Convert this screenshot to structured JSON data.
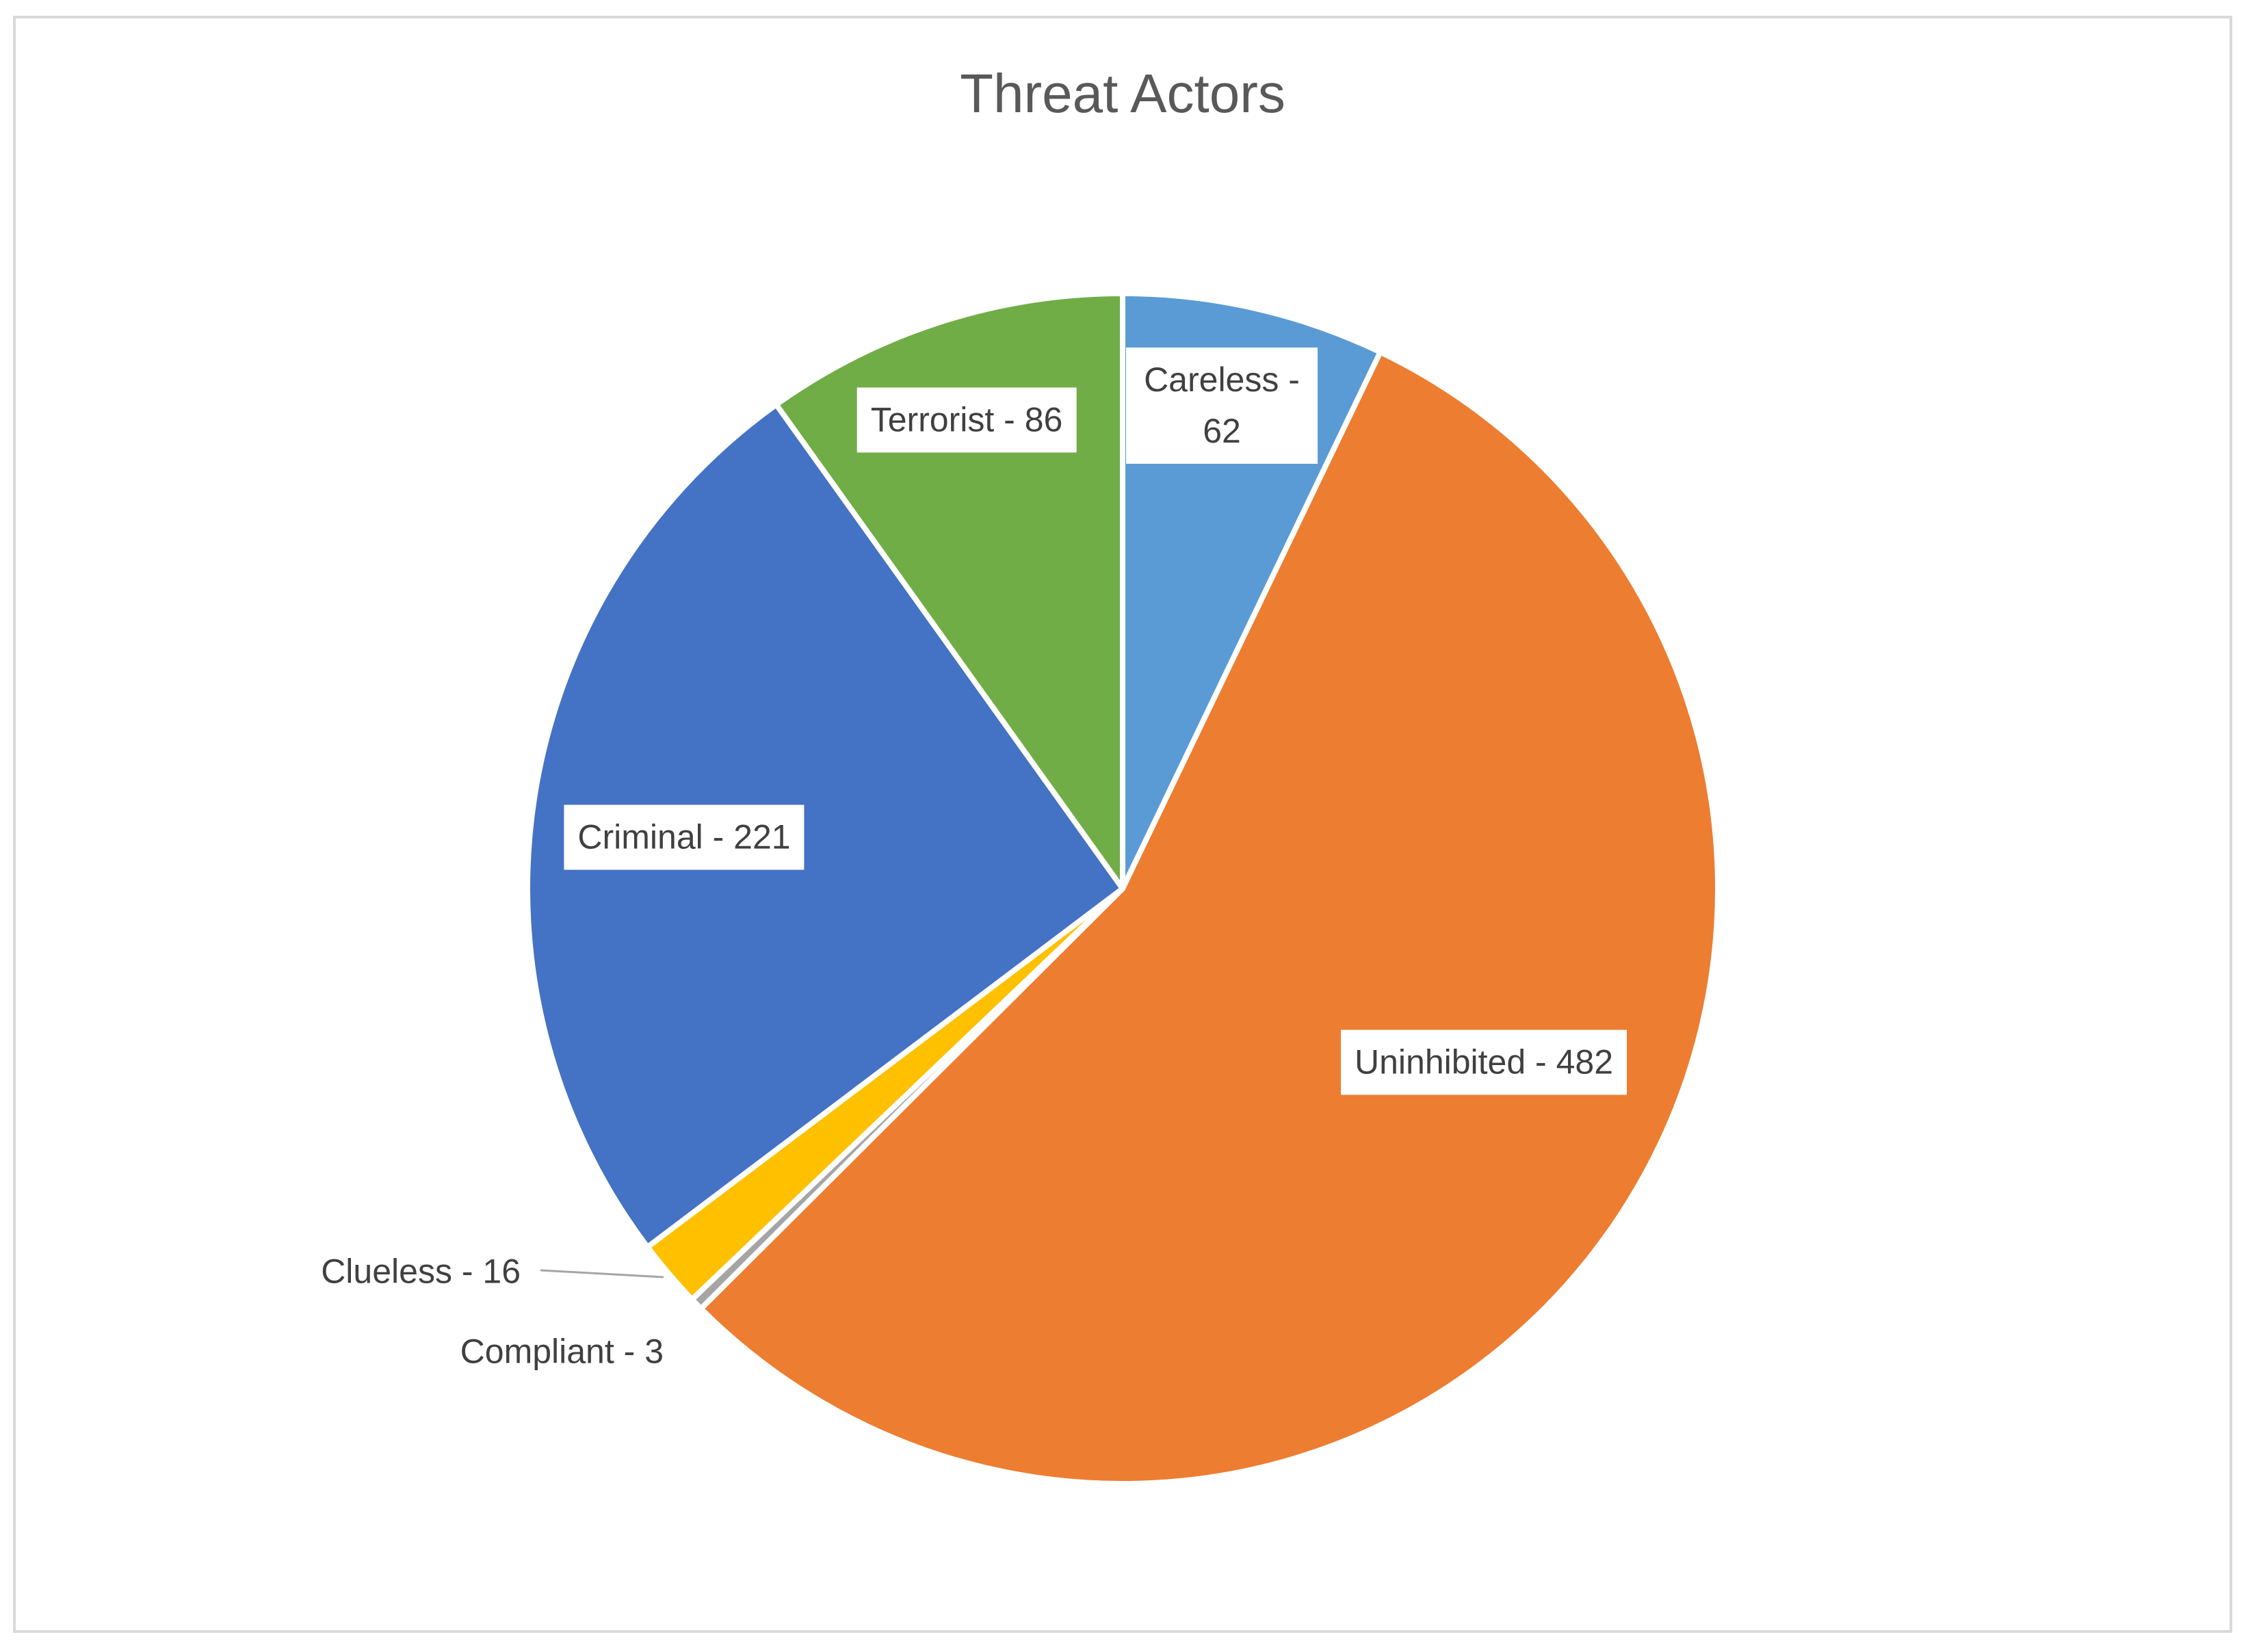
{
  "chart_data": {
    "type": "pie",
    "title": "Threat Actors",
    "categories": [
      "Careless",
      "Uninhibited",
      "Compliant",
      "Clueless",
      "Criminal",
      "Terrorist"
    ],
    "values": [
      62,
      482,
      3,
      16,
      221,
      86
    ],
    "value_labels": [
      "Careless - 62",
      "Uninhibited - 482",
      "Compliant - 3",
      "Clueless - 16",
      "Criminal - 221",
      "Terrorist - 86"
    ],
    "colors": [
      "#5b9bd5",
      "#ed7d31",
      "#a5a5a5",
      "#ffc000",
      "#4472c4",
      "#70ad47"
    ]
  }
}
